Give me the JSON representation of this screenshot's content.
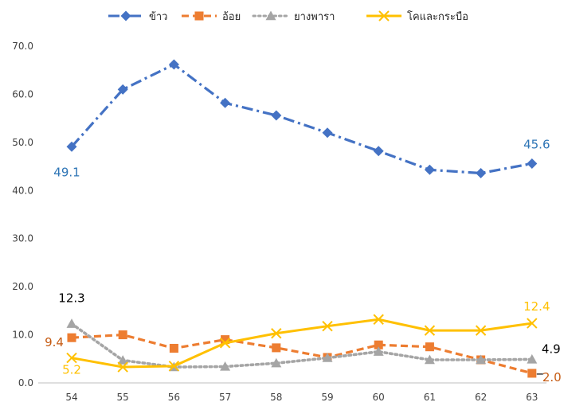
{
  "chart_data": {
    "type": "line",
    "title": "",
    "xlabel": "",
    "ylabel": "",
    "categories": [
      "54",
      "55",
      "56",
      "57",
      "58",
      "59",
      "60",
      "61",
      "62",
      "63"
    ],
    "ylim": [
      0,
      70
    ],
    "yticks": [
      "0.0",
      "10.0",
      "20.0",
      "30.0",
      "40.0",
      "50.0",
      "60.0",
      "70.0"
    ],
    "grid": false,
    "legend_position": "top",
    "series": [
      {
        "name": "ข้าว",
        "color": "#4472C4",
        "marker": "diamond",
        "line_style": "dash-dot",
        "values": [
          49.1,
          61.0,
          66.2,
          58.2,
          55.6,
          52.0,
          48.2,
          44.3,
          43.6,
          45.6
        ]
      },
      {
        "name": "อ้อย",
        "color": "#ED7D31",
        "marker": "square",
        "line_style": "dash",
        "values": [
          9.4,
          10.0,
          7.2,
          9.0,
          7.3,
          5.3,
          7.9,
          7.5,
          4.8,
          2.0
        ]
      },
      {
        "name": "ยางพารา",
        "color": "#A5A5A5",
        "marker": "triangle",
        "line_style": "dot",
        "values": [
          12.3,
          4.7,
          3.3,
          3.4,
          4.1,
          5.2,
          6.5,
          4.8,
          4.8,
          4.9
        ]
      },
      {
        "name": "โคและกระบือ",
        "color": "#FFC000",
        "marker": "x",
        "line_style": "solid",
        "values": [
          5.2,
          3.3,
          3.5,
          8.3,
          10.3,
          11.8,
          13.2,
          10.9,
          10.9,
          12.4
        ]
      }
    ],
    "annotations": [
      {
        "series": 0,
        "index": 0,
        "text": "49.1",
        "color": "#2E75B6"
      },
      {
        "series": 0,
        "index": 9,
        "text": "45.6",
        "color": "#2E75B6"
      },
      {
        "series": 1,
        "index": 0,
        "text": "9.4",
        "color": "#C55A11"
      },
      {
        "series": 1,
        "index": 9,
        "text": "2.0",
        "color": "#C55A11"
      },
      {
        "series": 2,
        "index": 0,
        "text": "12.3",
        "color": "#000000"
      },
      {
        "series": 2,
        "index": 9,
        "text": "4.9",
        "color": "#000000"
      },
      {
        "series": 3,
        "index": 0,
        "text": "5.2",
        "color": "#FFC000"
      },
      {
        "series": 3,
        "index": 9,
        "text": "12.4",
        "color": "#FFC000"
      }
    ]
  }
}
